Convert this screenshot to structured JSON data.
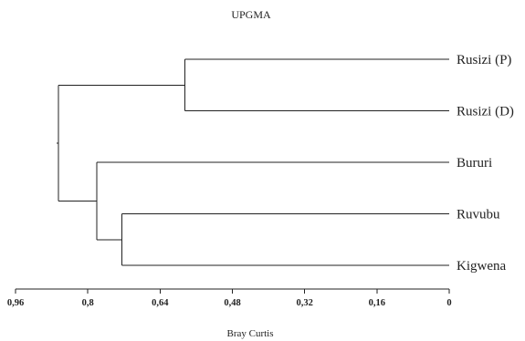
{
  "title": "UPGMA",
  "x_axis": {
    "label": "Bray Curtis",
    "ticks": [
      {
        "value": 0.96,
        "label": "0,96"
      },
      {
        "value": 0.8,
        "label": "0,8"
      },
      {
        "value": 0.64,
        "label": "0,64"
      },
      {
        "value": 0.48,
        "label": "0,48"
      },
      {
        "value": 0.32,
        "label": "0,32"
      },
      {
        "value": 0.16,
        "label": "0,16"
      },
      {
        "value": 0.0,
        "label": "0"
      }
    ],
    "min": 0,
    "max": 0.96,
    "reversed": true
  },
  "leaves": [
    "Rusizi (P)",
    "Rusizi (D)",
    "Bururi",
    "Ruvubu",
    "Kigwena"
  ],
  "merges": [
    {
      "id": "A",
      "left": "Rusizi (P)",
      "right": "Rusizi (D)",
      "height": 0.585
    },
    {
      "id": "B",
      "left": "Ruvubu",
      "right": "Kigwena",
      "height": 0.725
    },
    {
      "id": "C",
      "left": "Bururi",
      "right": "B",
      "height": 0.78
    },
    {
      "id": "D",
      "left": "A",
      "right": "C",
      "height": 0.865
    }
  ]
}
